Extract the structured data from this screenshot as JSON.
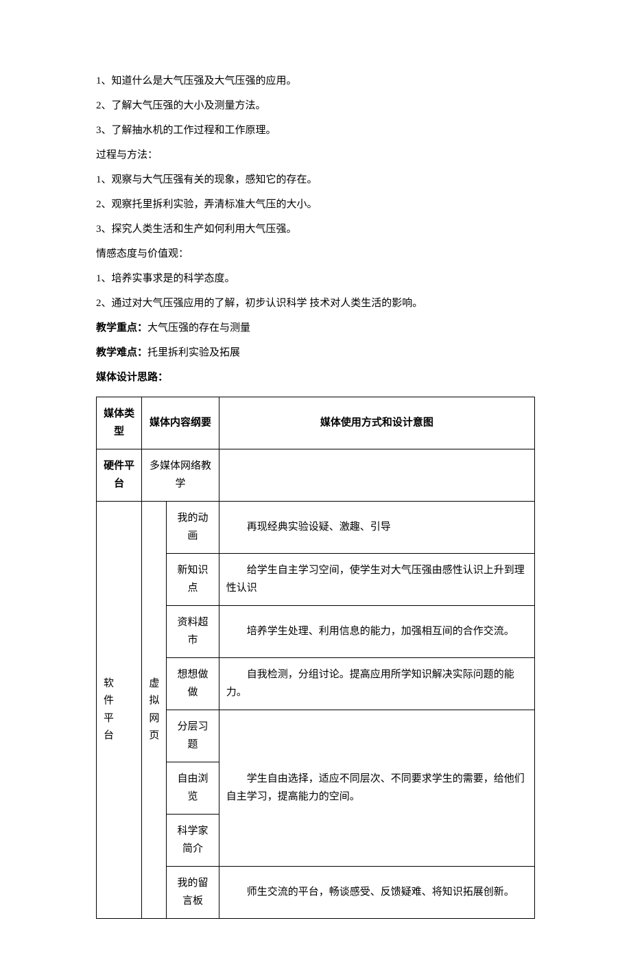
{
  "lines": {
    "l1": "1、知道什么是大气压强及大气压强的应用。",
    "l2": "2、了解大气压强的大小及测量方法。",
    "l3": "3、了解抽水机的工作过程和工作原理。",
    "h1": "过程与方法：",
    "l4": "1、观察与大气压强有关的现象，感知它的存在。",
    "l5": "2、观察托里拆利实验，弄清标准大气压的大小。",
    "l6": "3、探究人类生活和生产如何利用大气压强。",
    "h2": "情感态度与价值观：",
    "l7": "1、培养实事求是的科学态度。",
    "l8": "2、通过对大气压强应用的了解，初步认识科学 技术对人类生活的影响。",
    "keypoint_label": "教学重点：",
    "keypoint_text": "大气压强的存在与测量",
    "difficult_label": "教学难点：",
    "difficult_text": "托里拆利实验及拓展",
    "design_label": "媒体设计思路："
  },
  "table": {
    "headers": {
      "c1": "媒体类型",
      "c2": "媒体内容纲要",
      "c3": "媒体使用方式和设计意图"
    },
    "row_hardware": {
      "type": "硬件平台",
      "content": "多媒体网络教学",
      "desc": ""
    },
    "software_label_chars": [
      "软",
      "件",
      "平",
      "台"
    ],
    "virtual_label_chars": [
      "虚",
      "拟",
      "网",
      "页"
    ],
    "rows": [
      {
        "content": "我的动画",
        "desc": "再现经典实验设疑、激趣、引导"
      },
      {
        "content": "新知识点",
        "desc": "给学生自主学习空间，使学生对大气压强由感性认识上升到理性认识"
      },
      {
        "content": "资料超市",
        "desc": "培养学生处理、利用信息的能力，加强相互间的合作交流。"
      },
      {
        "content": "想想做做",
        "desc": "自我检测，分组讨论。提高应用所学知识解决实际问题的能力。"
      },
      {
        "content": "分层习题",
        "desc": "学生自由选择，适应不同层次、不同要求学生的需要，给他们自主学习，提高能力的空间。"
      },
      {
        "content": "自由浏览",
        "desc": ""
      },
      {
        "content": "科学家简介",
        "desc": ""
      },
      {
        "content": "我的留言板",
        "desc": "师生交流的平台，畅谈感受、反馈疑难、将知识拓展创新。"
      }
    ]
  },
  "style": {
    "text_color": "#000000",
    "background_color": "#ffffff",
    "border_color": "#000000",
    "body_font_size": 15,
    "line_height": 2.4,
    "table_padding": "12px 10px"
  }
}
